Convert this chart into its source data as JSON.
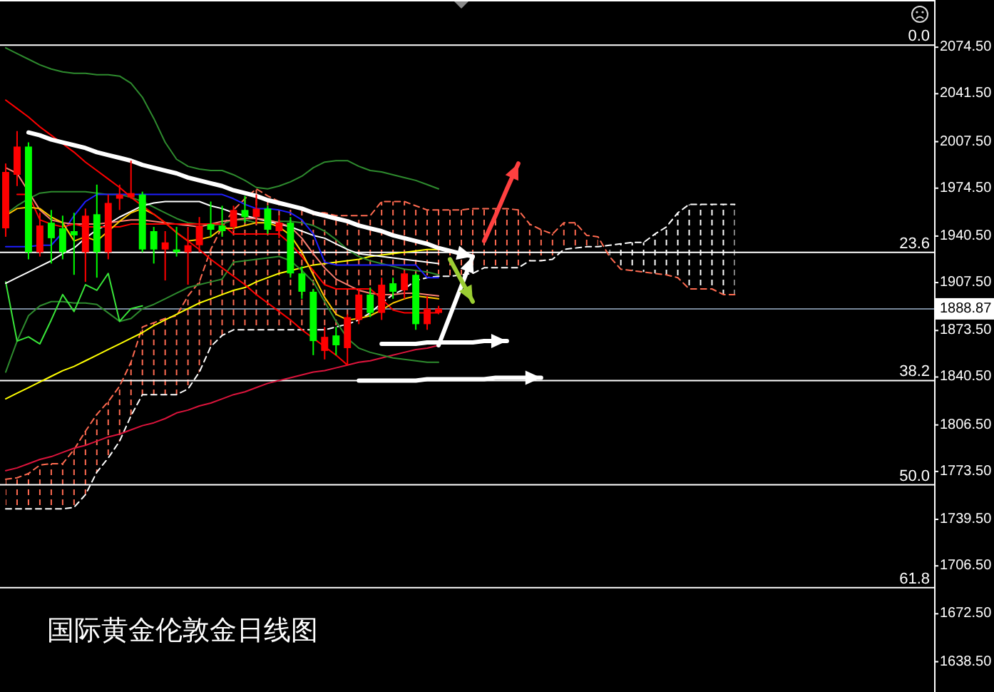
{
  "chart_data": {
    "type": "candlestick",
    "categories": [
      null,
      null,
      null,
      null,
      null,
      null,
      null,
      null,
      null,
      null,
      null,
      null,
      null,
      null,
      null,
      null,
      null,
      null,
      null,
      null,
      null,
      null,
      null,
      null,
      null,
      null,
      null,
      null,
      null,
      null,
      null,
      null,
      null,
      null,
      null,
      null,
      null,
      null,
      null,
      null,
      null,
      null,
      null,
      null,
      null,
      null,
      null,
      null,
      null,
      null,
      null,
      null,
      null,
      null,
      null,
      null,
      null,
      null,
      null,
      null,
      null,
      null,
      null,
      null,
      null
    ],
    "ohlc": [
      [
        1946,
        1992,
        1940,
        1986
      ],
      [
        1984,
        2015,
        1976,
        2004
      ],
      [
        2004,
        2007,
        1924,
        1929
      ],
      [
        1929,
        1957,
        1926,
        1948
      ],
      [
        1950,
        1959,
        1921,
        1939
      ],
      [
        1946,
        1955,
        1924,
        1929
      ],
      [
        1944,
        1957,
        1913,
        1941
      ],
      [
        1929,
        1960,
        1908,
        1955
      ],
      [
        1956,
        1977,
        1911,
        1929
      ],
      [
        1929,
        1970,
        1924,
        1964
      ],
      [
        1967,
        1977,
        1959,
        1970
      ],
      [
        1968,
        1994,
        1967,
        1971
      ],
      [
        1970,
        1972,
        1929,
        1931
      ],
      [
        1944,
        1947,
        1921,
        1931
      ],
      [
        1931,
        1944,
        1909,
        1936
      ],
      [
        1931,
        1947,
        1926,
        1929
      ],
      [
        1929,
        1947,
        1906,
        1934
      ],
      [
        1934,
        1954,
        1929,
        1948
      ],
      [
        1949,
        1965,
        1940,
        1945
      ],
      [
        1948,
        1962,
        1940,
        1944
      ],
      [
        1947,
        1962,
        1944,
        1959
      ],
      [
        1959,
        1969,
        1950,
        1954
      ],
      [
        1954,
        1970,
        1949,
        1960
      ],
      [
        1960,
        1962,
        1942,
        1945
      ],
      [
        1944,
        1955,
        1939,
        1950
      ],
      [
        1950,
        1954,
        1911,
        1914
      ],
      [
        1914,
        1919,
        1896,
        1901
      ],
      [
        1901,
        1903,
        1856,
        1866
      ],
      [
        1859,
        1876,
        1853,
        1869
      ],
      [
        1870,
        1876,
        1856,
        1863
      ],
      [
        1861,
        1885,
        1849,
        1883
      ],
      [
        1881,
        1903,
        1878,
        1899
      ],
      [
        1899,
        1904,
        1883,
        1886
      ],
      [
        1886,
        1911,
        1881,
        1906
      ],
      [
        1907,
        1911,
        1896,
        1901
      ],
      [
        1902,
        1916,
        1896,
        1914
      ],
      [
        1913,
        1914,
        1874,
        1878
      ],
      [
        1878,
        1898,
        1874,
        1889
      ],
      [
        1886,
        1891,
        1885,
        1889
      ],
      null,
      null,
      null,
      null,
      null,
      null,
      null,
      null,
      null,
      null,
      null,
      null,
      null,
      null,
      null,
      null,
      null,
      null,
      null,
      null,
      null,
      null,
      null,
      null,
      null,
      null
    ],
    "colors": [
      "#ff0000",
      "#ff0000",
      "#00ff00",
      "#ff0000",
      "#00ff00",
      "#00ff00",
      "#00ff00",
      "#ff0000",
      "#00ff00",
      "#ff0000",
      "#ff0000",
      "#ff0000",
      "#00ff00",
      "#00ff00",
      "#ff0000",
      "#00ff00",
      "#ff0000",
      "#ff0000",
      "#00ff00",
      "#00ff00",
      "#ff0000",
      "#00ff00",
      "#ff0000",
      "#00ff00",
      "#ff0000",
      "#00ff00",
      "#00ff00",
      "#00ff00",
      "#ff0000",
      "#00ff00",
      "#ff0000",
      "#ff0000",
      "#00ff00",
      "#ff0000",
      "#00ff00",
      "#ff0000",
      "#00ff00",
      "#ff0000",
      "#ff0000",
      null,
      null,
      null,
      null,
      null,
      null,
      null,
      null,
      null,
      null,
      null,
      null,
      null,
      null,
      null,
      null,
      null,
      null,
      null,
      null,
      null,
      null,
      null,
      null,
      null,
      null
    ],
    "series": [
      {
        "type": "line",
        "color": "#ff6a50",
        "line_style": "dashed",
        "values": [
          1768,
          1769,
          1772,
          1778,
          1779,
          1779,
          1789,
          1802,
          1814,
          1823,
          1834,
          1851,
          1876,
          1879,
          1882,
          1884,
          1898,
          1908,
          1931,
          1947,
          1959,
          1967,
          1974,
          1969,
          1965,
          1962,
          1959,
          1957,
          1957,
          1955,
          1955,
          1955,
          1955,
          1965,
          1965,
          1965,
          1962,
          1959,
          1959,
          1959,
          1959,
          1960,
          1960,
          1960,
          1960,
          1959,
          1949,
          1945,
          1942,
          1950,
          1950,
          1941,
          1940,
          1926,
          1917,
          1916,
          1915,
          1914,
          1913,
          1911,
          1903,
          1903,
          1903,
          1899,
          1899
        ],
        "lower": [
          1747,
          1747,
          1747,
          1747,
          1747,
          1747,
          1748,
          1757,
          1773,
          1783,
          1795,
          1813,
          1828,
          1828,
          1828,
          1828,
          1832,
          1844,
          1862,
          1870,
          1874,
          1874,
          1874,
          1874,
          1874,
          1874,
          1874,
          1874,
          1874,
          1876,
          1878,
          1881,
          1886,
          1893,
          1899,
          1903,
          1909,
          1911,
          1912,
          1912,
          1913,
          1914,
          1918,
          1918,
          1918,
          1918,
          1923,
          1923,
          1924,
          1931,
          1932,
          1933,
          1933,
          null,
          null,
          null,
          null,
          null,
          null,
          null,
          null,
          null,
          null,
          null,
          null
        ],
        "upper": [
          1768,
          1769,
          1772,
          1778,
          1779,
          1779,
          1789,
          1802,
          1814,
          1823,
          1834,
          1851,
          1876,
          1879,
          1882,
          1884,
          1898,
          1908,
          1931,
          1947,
          1959,
          1967,
          1974,
          1969,
          1965,
          1962,
          1959,
          1957,
          1957,
          1955,
          1955,
          1955,
          1955,
          1965,
          1965,
          1965,
          1962,
          1959,
          1959,
          1959,
          1959,
          1960,
          1960,
          1960,
          1960,
          1959,
          1949,
          1945,
          1942,
          1950,
          1950,
          1941,
          1940,
          null,
          null,
          null,
          null,
          null,
          null,
          null,
          null,
          null,
          null,
          null,
          null
        ]
      },
      {
        "type": "line",
        "color": "#ffffff",
        "line_style": "dashed",
        "values": [
          1747,
          1747,
          1747,
          1747,
          1747,
          1747,
          1748,
          1757,
          1773,
          1783,
          1795,
          1813,
          1828,
          1828,
          1828,
          1828,
          1832,
          1844,
          1862,
          1870,
          1874,
          1874,
          1874,
          1874,
          1874,
          1874,
          1874,
          1874,
          1874,
          1876,
          1878,
          1881,
          1886,
          1893,
          1899,
          1903,
          1909,
          1911,
          1912,
          1912,
          1913,
          1914,
          1918,
          1918,
          1918,
          1918,
          1923,
          1923,
          1924,
          1931,
          1932,
          1933,
          1933,
          1934,
          1935,
          1936,
          1936,
          1942,
          1947,
          1957,
          1963,
          1963,
          1963,
          1963,
          1963
        ],
        "lower": [
          null,
          null,
          null,
          null,
          null,
          null,
          null,
          null,
          null,
          null,
          null,
          null,
          null,
          null,
          null,
          null,
          null,
          null,
          null,
          null,
          null,
          null,
          null,
          null,
          null,
          null,
          null,
          null,
          null,
          null,
          null,
          null,
          null,
          null,
          null,
          null,
          null,
          null,
          null,
          null,
          null,
          null,
          null,
          null,
          null,
          null,
          null,
          null,
          null,
          null,
          null,
          null,
          null,
          1926,
          1917,
          1916,
          1915,
          1914,
          1913,
          1911,
          1903,
          1903,
          1903,
          1899,
          1899
        ],
        "upper": [
          null,
          null,
          null,
          null,
          null,
          null,
          null,
          null,
          null,
          null,
          null,
          null,
          null,
          null,
          null,
          null,
          null,
          null,
          null,
          null,
          null,
          null,
          null,
          null,
          null,
          null,
          null,
          null,
          null,
          null,
          null,
          null,
          null,
          null,
          null,
          null,
          null,
          null,
          null,
          null,
          null,
          null,
          null,
          null,
          null,
          null,
          null,
          null,
          null,
          null,
          null,
          null,
          null,
          1934,
          1935,
          1936,
          1936,
          1942,
          1947,
          1957,
          1963,
          1963,
          1963,
          1963,
          1963
        ]
      },
      {
        "type": "line",
        "color": "#dc143c",
        "values": [
          1774,
          1776,
          1779,
          1782,
          1784,
          1787,
          1790,
          1792,
          1795,
          1798,
          1800,
          1803,
          1806,
          1808,
          1811,
          1815,
          1817,
          1820,
          1822,
          1825,
          1828,
          1830,
          1833,
          1836,
          1838,
          1840,
          1842,
          1844,
          1845,
          1847,
          1849,
          1851,
          1852,
          1854,
          1856,
          1858,
          1860,
          1861,
          1863,
          null,
          null,
          null,
          null,
          null,
          null,
          null,
          null,
          null,
          null,
          null,
          null,
          null,
          null,
          null,
          null,
          null,
          null,
          null,
          null,
          null,
          null,
          null,
          null,
          null,
          null
        ]
      },
      {
        "type": "line",
        "color": "#ffff00",
        "values": [
          1825,
          1829,
          1833,
          1837,
          1841,
          1845,
          1848,
          1852,
          1856,
          1860,
          1864,
          1868,
          1872,
          1877,
          1881,
          1885,
          1889,
          1893,
          1896,
          1899,
          1902,
          1904,
          1908,
          1911,
          1914,
          1916,
          1918,
          1920,
          1921,
          1922,
          1923,
          1924,
          1926,
          1927,
          1928,
          1929,
          1930,
          1931,
          1931,
          null,
          null,
          null,
          null,
          null,
          null,
          null,
          null,
          null,
          null,
          null,
          null,
          null,
          null,
          null,
          null,
          null,
          null,
          null,
          null,
          null,
          null,
          null,
          null,
          null,
          null
        ]
      },
      {
        "type": "line",
        "color": "#2e8b2e",
        "values": [
          2074,
          2070,
          2066,
          2062,
          2059,
          2057,
          2056,
          2056,
          2055,
          2055,
          2054,
          2049,
          2039,
          2024,
          2007,
          1995,
          1990,
          1988,
          1987,
          1987,
          1984,
          1980,
          1975,
          1974,
          1976,
          1979,
          1983,
          1989,
          1993,
          1994,
          1994,
          1990,
          1987,
          1986,
          1984,
          1982,
          1980,
          1977,
          1974,
          null,
          null,
          null,
          null,
          null,
          null,
          null,
          null,
          null,
          null,
          null,
          null,
          null,
          null,
          null,
          null,
          null,
          null,
          null,
          null,
          null,
          null,
          null,
          null,
          null,
          null
        ]
      },
      {
        "type": "line",
        "color": "#2e8b2e",
        "values": [
          1956,
          1962,
          1967,
          1971,
          1972,
          1972,
          1972,
          1972,
          1971,
          1970,
          1970,
          1968,
          1965,
          1961,
          1957,
          1953,
          1950,
          1949,
          1948,
          1949,
          1952,
          1952,
          1950,
          1950,
          1951,
          1951,
          1950,
          1948,
          1944,
          1938,
          1931,
          1926,
          1923,
          1921,
          1919,
          1917,
          1916,
          1915,
          1913,
          null,
          null,
          null,
          null,
          null,
          null,
          null,
          null,
          null,
          null,
          null,
          null,
          null,
          null,
          null,
          null,
          null,
          null,
          null,
          null,
          null,
          null,
          null,
          null,
          null,
          null
        ]
      },
      {
        "type": "line",
        "color": "#2e8b2e",
        "values": [
          1844,
          1866,
          1884,
          1891,
          1894,
          1894,
          1893,
          1893,
          1892,
          1886,
          1880,
          1882,
          1889,
          1892,
          1896,
          1900,
          1904,
          1906,
          1908,
          1910,
          1922,
          1923,
          1924,
          1925,
          1926,
          1923,
          1916,
          1908,
          1894,
          1880,
          1868,
          1861,
          1858,
          1856,
          1854,
          1853,
          1852,
          1851,
          1851,
          null,
          null,
          null,
          null,
          null,
          null,
          null,
          null,
          null,
          null,
          null,
          null,
          null,
          null,
          null,
          null,
          null,
          null,
          null,
          null,
          null,
          null,
          null,
          null,
          null,
          null
        ]
      },
      {
        "type": "line",
        "color": "#39e639",
        "values": [
          1908,
          1866,
          1869,
          1864,
          1881,
          1899,
          1887,
          1906,
          1902,
          1914,
          1880,
          1889,
          1891,
          null,
          null,
          null,
          null,
          null,
          null,
          null,
          null,
          null,
          null,
          null,
          null,
          null,
          null,
          null,
          null,
          null,
          null,
          null,
          null,
          null,
          null,
          null,
          null,
          null,
          null,
          null,
          null,
          null,
          null,
          null,
          null,
          null,
          null,
          null,
          null,
          null,
          null,
          null,
          null,
          null,
          null,
          null,
          null,
          null,
          null,
          null,
          null,
          null,
          null,
          null,
          null
        ]
      },
      {
        "type": "line",
        "color": "#ffffff",
        "values": [
          1907,
          1911,
          1915,
          1919,
          1923,
          1928,
          1932,
          1939,
          1945,
          1949,
          1954,
          1958,
          1962,
          1964,
          1965,
          1965,
          1965,
          1965,
          1962,
          1960,
          1957,
          1955,
          1953,
          1951,
          1949,
          1947,
          1944,
          1941,
          1939,
          1935,
          1931,
          1928,
          1927,
          1926,
          1925,
          1924,
          1923,
          1922,
          1921,
          null,
          null,
          null,
          null,
          null,
          null,
          null,
          null,
          null,
          null,
          null,
          null,
          null,
          null,
          null,
          null,
          null,
          null,
          null,
          null,
          null,
          null,
          null,
          null,
          null,
          null
        ]
      },
      {
        "type": "line",
        "color": "#1e1eff",
        "values": [
          1933,
          1933,
          1933,
          1934,
          1934,
          1943,
          1955,
          1965,
          1970,
          1970,
          1970,
          1970,
          1970,
          1970,
          1970,
          1970,
          1970,
          1970,
          1970,
          1970,
          1967,
          1963,
          1960,
          1960,
          1959,
          1957,
          1952,
          1942,
          1922,
          1920,
          1920,
          1920,
          1920,
          1920,
          1920,
          1920,
          1920,
          1911,
          1911,
          null,
          null,
          null,
          null,
          null,
          null,
          null,
          null,
          null,
          null,
          null,
          null,
          null,
          null,
          null,
          null,
          null,
          null,
          null,
          null,
          null,
          null,
          null,
          null,
          null,
          null
        ]
      },
      {
        "type": "line",
        "color": "#fa8072",
        "values": [
          1989,
          1985,
          1972,
          1959,
          1952,
          1950,
          1949,
          1949,
          1949,
          1950,
          1951,
          1952,
          1952,
          1951,
          1950,
          1949,
          1948,
          1947,
          1949,
          1951,
          1952,
          1953,
          1953,
          1952,
          1950,
          1947,
          1939,
          1928,
          1918,
          1910,
          1906,
          1902,
          1900,
          1899,
          1899,
          1900,
          1900,
          1899,
          1898,
          null,
          null,
          null,
          null,
          null,
          null,
          null,
          null,
          null,
          null,
          null,
          null,
          null,
          null,
          null,
          null,
          null,
          null,
          null,
          null,
          null,
          null,
          null,
          null,
          null,
          null
        ]
      },
      {
        "type": "line",
        "color": "#ff0000",
        "values": [
          null,
          1970,
          1970,
          1952,
          1949,
          1947,
          1949,
          1947,
          1947,
          1947,
          1947,
          1949,
          1949,
          1949,
          1949,
          1949,
          1949,
          1949,
          1949,
          1949,
          1942,
          1942,
          1942,
          1942,
          1942,
          1935,
          1926,
          1916,
          1906,
          1903,
          1903,
          1903,
          1903,
          1896,
          1888,
          1886,
          1886,
          1886,
          1886,
          null,
          null,
          null,
          null,
          null,
          null,
          null,
          null,
          null,
          null,
          null,
          null,
          null,
          null,
          null,
          null,
          null,
          null,
          null,
          null,
          null,
          null,
          null,
          null,
          null,
          null
        ]
      },
      {
        "type": "line",
        "color": "#ffc800",
        "values": [
          1955,
          1960,
          1961,
          1960,
          1954,
          1950,
          1937,
          1940,
          1937,
          1944,
          1951,
          1957,
          1960,
          1956,
          1950,
          1943,
          1937,
          1938,
          1940,
          1946,
          1946,
          1948,
          1950,
          1950,
          1947,
          1941,
          1929,
          1913,
          1897,
          1885,
          1881,
          1882,
          1884,
          1888,
          1893,
          1896,
          1898,
          1897,
          1896,
          null,
          null,
          null,
          null,
          null,
          null,
          null,
          null,
          null,
          null,
          null,
          null,
          null,
          null,
          null,
          null,
          null,
          null,
          null,
          null,
          null,
          null,
          null,
          null,
          null,
          null
        ]
      },
      {
        "type": "line",
        "color": "#ff0000",
        "values": [
          2037,
          2031,
          2025,
          2018,
          2012,
          2006,
          2000,
          1993,
          1987,
          1981,
          1975,
          1968,
          1962,
          1956,
          1950,
          1943,
          1937,
          1931,
          1924,
          1918,
          1912,
          1906,
          1899,
          1893,
          1887,
          1881,
          1874,
          1868,
          1862,
          1856,
          1849,
          null,
          null,
          null,
          null,
          null,
          null,
          null,
          null,
          null,
          null,
          null,
          null,
          null,
          null,
          null,
          null,
          null,
          null,
          null,
          null,
          null,
          null,
          null,
          null,
          null,
          null,
          null,
          null,
          null,
          null,
          null,
          null,
          null,
          null
        ]
      },
      {
        "type": "line",
        "color": "#ffffff",
        "values": [
          null,
          null,
          2014,
          2012,
          2009,
          2007,
          2005,
          2003,
          2000,
          1998,
          1996,
          1994,
          1991,
          1989,
          1987,
          1985,
          1982,
          1980,
          1978,
          1976,
          1973,
          1971,
          1969,
          1966,
          1964,
          1962,
          1960,
          1957,
          1955,
          1953,
          1951,
          1948,
          1946,
          1944,
          1941,
          1939,
          1937,
          1935,
          1932,
          1930,
          1928,
          1926,
          null,
          null,
          null,
          null,
          null,
          null,
          null,
          null,
          null,
          null,
          null,
          null,
          null,
          null,
          null,
          null,
          null,
          null,
          null,
          null,
          null,
          null,
          null
        ]
      },
      {
        "type": "line",
        "color": "#ffffff",
        "values": [
          null,
          null,
          null,
          null,
          null,
          null,
          null,
          null,
          null,
          null,
          null,
          null,
          null,
          null,
          null,
          null,
          null,
          null,
          null,
          null,
          null,
          null,
          null,
          null,
          null,
          null,
          null,
          null,
          null,
          null,
          null,
          null,
          null,
          null,
          null,
          null,
          null,
          null,
          1863,
          1884,
          1905,
          1926,
          null,
          null,
          null,
          null,
          null,
          null,
          null,
          null,
          null,
          null,
          null,
          null,
          null,
          null,
          null,
          null,
          null,
          null,
          null,
          null,
          null,
          null,
          null
        ]
      },
      {
        "type": "line",
        "color": "#ffffff",
        "values": [
          null,
          null,
          null,
          null,
          null,
          null,
          null,
          null,
          null,
          null,
          null,
          null,
          null,
          null,
          null,
          null,
          null,
          null,
          null,
          null,
          null,
          null,
          null,
          null,
          null,
          null,
          null,
          null,
          null,
          null,
          null,
          null,
          null,
          1864,
          1864,
          1864,
          1864,
          1865,
          1865,
          1865,
          1865,
          1865,
          1866,
          1866,
          1866,
          null,
          null,
          null,
          null,
          null,
          null,
          null,
          null,
          null,
          null,
          null,
          null,
          null,
          null,
          null,
          null,
          null,
          null,
          null,
          null
        ]
      },
      {
        "type": "line",
        "color": "#ffffff",
        "values": [
          null,
          null,
          null,
          null,
          null,
          null,
          null,
          null,
          null,
          null,
          null,
          null,
          null,
          null,
          null,
          null,
          null,
          null,
          null,
          null,
          null,
          null,
          null,
          null,
          null,
          null,
          null,
          null,
          null,
          null,
          null,
          1838,
          1838,
          1838,
          1838,
          1838,
          1838,
          1839,
          1839,
          1839,
          1839,
          1839,
          1839,
          1840,
          1840,
          1840,
          1840,
          1840,
          null,
          null,
          null,
          null,
          null,
          null,
          null,
          null,
          null,
          null,
          null,
          null,
          null,
          null,
          null,
          null,
          null
        ]
      },
      {
        "type": "line",
        "color": "#ff4040",
        "values": [
          null,
          null,
          null,
          null,
          null,
          null,
          null,
          null,
          null,
          null,
          null,
          null,
          null,
          null,
          null,
          null,
          null,
          null,
          null,
          null,
          null,
          null,
          null,
          null,
          null,
          null,
          null,
          null,
          null,
          null,
          null,
          null,
          null,
          null,
          null,
          null,
          null,
          null,
          null,
          null,
          null,
          null,
          1937,
          1955,
          1974,
          1992,
          null,
          null,
          null,
          null,
          null,
          null,
          null,
          null,
          null,
          null,
          null,
          null,
          null,
          null,
          null,
          null,
          null,
          null,
          null
        ]
      },
      {
        "type": "line",
        "color": "#9acd32",
        "values": [
          null,
          null,
          null,
          null,
          null,
          null,
          null,
          null,
          null,
          null,
          null,
          null,
          null,
          null,
          null,
          null,
          null,
          null,
          null,
          null,
          null,
          null,
          null,
          null,
          null,
          null,
          null,
          null,
          null,
          null,
          null,
          null,
          null,
          null,
          null,
          null,
          null,
          null,
          null,
          1924,
          1909,
          1894,
          null,
          null,
          null,
          null,
          null,
          null,
          null,
          null,
          null,
          null,
          null,
          null,
          null,
          null,
          null,
          null,
          null,
          null,
          null,
          null,
          null,
          null,
          null
        ]
      }
    ],
    "ylim": [
      1617,
      2108
    ],
    "yticks": [
      {
        "value": 2074.5,
        "label": "2074.50"
      },
      {
        "value": 2041.5,
        "label": "2041.50"
      },
      {
        "value": 2007.5,
        "label": "2007.50"
      },
      {
        "value": 1974.5,
        "label": "1974.50"
      },
      {
        "value": 1940.5,
        "label": "1940.50"
      },
      {
        "value": 1907.5,
        "label": "1907.50"
      },
      {
        "value": 1888.87,
        "label": "1888.87"
      },
      {
        "value": 1873.5,
        "label": "1873.50"
      },
      {
        "value": 1840.5,
        "label": "1840.50"
      },
      {
        "value": 1806.5,
        "label": "1806.50"
      },
      {
        "value": 1773.5,
        "label": "1773.50"
      },
      {
        "value": 1739.5,
        "label": "1739.50"
      },
      {
        "value": 1706.5,
        "label": "1706.50"
      },
      {
        "value": 1672.5,
        "label": "1672.50"
      },
      {
        "value": 1638.5,
        "label": "1638.50"
      }
    ],
    "tick_labels": "y",
    "ref_lines": [
      {
        "axis": "y",
        "value": 2076,
        "color": "#ffffff"
      },
      {
        "axis": "y",
        "value": 1929,
        "color": "#ffffff"
      },
      {
        "axis": "y",
        "value": 1838,
        "color": "#ffffff"
      },
      {
        "axis": "y",
        "value": 1764,
        "color": "#ffffff"
      },
      {
        "axis": "y",
        "value": 1691,
        "color": "#ffffff"
      },
      {
        "axis": "y",
        "value": 1888.87,
        "color": "#778899"
      }
    ],
    "annotations": [
      {
        "text": "0.0",
        "y": 2076
      },
      {
        "text": "23.6",
        "y": 1929
      },
      {
        "text": "38.2",
        "y": 1838
      },
      {
        "text": "50.0",
        "y": 1764
      },
      {
        "text": "61.8",
        "y": 1691
      },
      "国际黄金伦敦金日线图"
    ]
  }
}
